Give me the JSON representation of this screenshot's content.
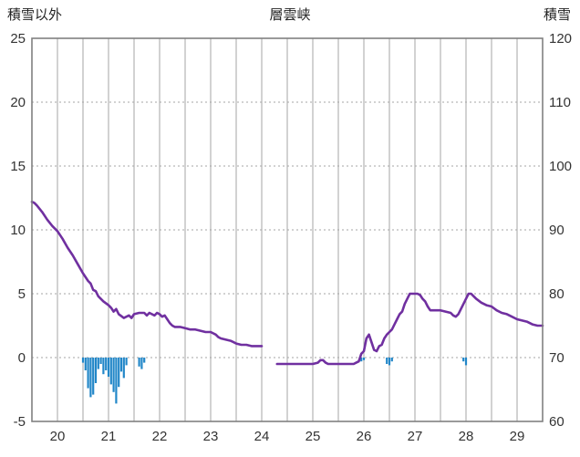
{
  "header": {
    "left_axis_title": "積雪以外",
    "title": "層雲峡",
    "right_axis_title": "積雪"
  },
  "chart_data": {
    "type": "line",
    "title": "層雲峡",
    "xlabel": "",
    "ylabel_left": "積雪以外",
    "ylabel_right": "積雪",
    "x_range": [
      19.5,
      29.5
    ],
    "x_ticks": [
      20,
      21,
      22,
      23,
      24,
      25,
      26,
      27,
      28,
      29
    ],
    "left_axis": {
      "range": [
        -5,
        25
      ],
      "ticks": [
        25,
        20,
        15,
        10,
        5,
        0,
        -5
      ]
    },
    "right_axis": {
      "range": [
        60,
        120
      ],
      "ticks": [
        120,
        110,
        100,
        90,
        80,
        70,
        60
      ]
    },
    "grid": {
      "vertical_step": 0.5,
      "horizontal_step": 5
    },
    "colors": {
      "line": "#7030a0",
      "bars": "#2287c8",
      "grid": "#a6a6a6",
      "frame": "#808080",
      "text": "#333333"
    },
    "series": [
      {
        "name": "snow-depth-segment-1",
        "points": [
          [
            19.5,
            12.2
          ],
          [
            19.55,
            12.1
          ],
          [
            19.6,
            11.9
          ],
          [
            19.7,
            11.4
          ],
          [
            19.8,
            10.8
          ],
          [
            19.9,
            10.3
          ],
          [
            20.0,
            9.9
          ],
          [
            20.1,
            9.3
          ],
          [
            20.2,
            8.6
          ],
          [
            20.3,
            8.0
          ],
          [
            20.4,
            7.3
          ],
          [
            20.5,
            6.6
          ],
          [
            20.6,
            6.0
          ],
          [
            20.65,
            5.8
          ],
          [
            20.7,
            5.3
          ],
          [
            20.75,
            5.2
          ],
          [
            20.8,
            4.8
          ],
          [
            20.9,
            4.4
          ],
          [
            21.0,
            4.1
          ],
          [
            21.05,
            3.9
          ],
          [
            21.1,
            3.6
          ],
          [
            21.15,
            3.8
          ],
          [
            21.2,
            3.4
          ],
          [
            21.3,
            3.1
          ],
          [
            21.4,
            3.3
          ],
          [
            21.45,
            3.1
          ],
          [
            21.5,
            3.4
          ],
          [
            21.6,
            3.5
          ],
          [
            21.7,
            3.5
          ],
          [
            21.75,
            3.3
          ],
          [
            21.8,
            3.5
          ],
          [
            21.9,
            3.3
          ],
          [
            21.95,
            3.5
          ],
          [
            22.0,
            3.4
          ],
          [
            22.05,
            3.2
          ],
          [
            22.1,
            3.3
          ],
          [
            22.15,
            3.0
          ],
          [
            22.2,
            2.7
          ],
          [
            22.25,
            2.5
          ],
          [
            22.3,
            2.4
          ],
          [
            22.4,
            2.4
          ],
          [
            22.5,
            2.3
          ],
          [
            22.6,
            2.2
          ],
          [
            22.7,
            2.2
          ],
          [
            22.8,
            2.1
          ],
          [
            22.9,
            2.0
          ],
          [
            23.0,
            2.0
          ],
          [
            23.1,
            1.8
          ],
          [
            23.15,
            1.6
          ],
          [
            23.2,
            1.5
          ],
          [
            23.3,
            1.4
          ],
          [
            23.4,
            1.3
          ],
          [
            23.5,
            1.1
          ],
          [
            23.6,
            1.0
          ],
          [
            23.7,
            1.0
          ],
          [
            23.8,
            0.9
          ],
          [
            23.9,
            0.9
          ],
          [
            24.0,
            0.9
          ]
        ]
      },
      {
        "name": "snow-depth-segment-2",
        "points": [
          [
            24.3,
            -0.5
          ],
          [
            24.5,
            -0.5
          ],
          [
            24.7,
            -0.5
          ],
          [
            24.9,
            -0.5
          ],
          [
            25.0,
            -0.5
          ],
          [
            25.1,
            -0.4
          ],
          [
            25.15,
            -0.2
          ],
          [
            25.2,
            -0.2
          ],
          [
            25.25,
            -0.4
          ],
          [
            25.3,
            -0.5
          ],
          [
            25.5,
            -0.5
          ],
          [
            25.7,
            -0.5
          ],
          [
            25.8,
            -0.5
          ],
          [
            25.85,
            -0.4
          ],
          [
            25.9,
            -0.3
          ],
          [
            25.95,
            0.3
          ],
          [
            26.0,
            0.5
          ],
          [
            26.05,
            1.5
          ],
          [
            26.1,
            1.8
          ],
          [
            26.15,
            1.2
          ],
          [
            26.2,
            0.6
          ],
          [
            26.25,
            0.5
          ],
          [
            26.3,
            0.9
          ],
          [
            26.35,
            1.0
          ],
          [
            26.4,
            1.5
          ],
          [
            26.45,
            1.8
          ],
          [
            26.5,
            2.0
          ],
          [
            26.55,
            2.2
          ],
          [
            26.6,
            2.6
          ],
          [
            26.65,
            3.0
          ],
          [
            26.7,
            3.4
          ],
          [
            26.75,
            3.6
          ],
          [
            26.8,
            4.2
          ],
          [
            26.85,
            4.6
          ],
          [
            26.9,
            5.0
          ],
          [
            27.0,
            5.0
          ],
          [
            27.05,
            5.0
          ],
          [
            27.1,
            4.9
          ],
          [
            27.15,
            4.6
          ],
          [
            27.2,
            4.4
          ],
          [
            27.25,
            4.0
          ],
          [
            27.3,
            3.7
          ],
          [
            27.4,
            3.7
          ],
          [
            27.5,
            3.7
          ],
          [
            27.6,
            3.6
          ],
          [
            27.7,
            3.5
          ],
          [
            27.75,
            3.3
          ],
          [
            27.8,
            3.2
          ],
          [
            27.85,
            3.4
          ],
          [
            27.9,
            3.8
          ],
          [
            27.95,
            4.2
          ],
          [
            28.0,
            4.6
          ],
          [
            28.05,
            5.0
          ],
          [
            28.1,
            5.0
          ],
          [
            28.15,
            4.8
          ],
          [
            28.2,
            4.6
          ],
          [
            28.3,
            4.3
          ],
          [
            28.4,
            4.1
          ],
          [
            28.5,
            4.0
          ],
          [
            28.6,
            3.7
          ],
          [
            28.7,
            3.5
          ],
          [
            28.8,
            3.4
          ],
          [
            28.9,
            3.2
          ],
          [
            29.0,
            3.0
          ],
          [
            29.1,
            2.9
          ],
          [
            29.2,
            2.8
          ],
          [
            29.3,
            2.6
          ],
          [
            29.4,
            2.5
          ],
          [
            29.5,
            2.5
          ]
        ]
      }
    ],
    "bars": {
      "name": "negative-bars",
      "points": [
        [
          20.5,
          -0.4
        ],
        [
          20.55,
          -1.0
        ],
        [
          20.6,
          -2.4
        ],
        [
          20.65,
          -3.1
        ],
        [
          20.7,
          -2.9
        ],
        [
          20.75,
          -2.0
        ],
        [
          20.8,
          -0.9
        ],
        [
          20.85,
          -0.5
        ],
        [
          20.9,
          -1.3
        ],
        [
          20.95,
          -1.0
        ],
        [
          21.0,
          -1.5
        ],
        [
          21.05,
          -2.1
        ],
        [
          21.1,
          -2.7
        ],
        [
          21.15,
          -3.6
        ],
        [
          21.2,
          -2.3
        ],
        [
          21.25,
          -1.1
        ],
        [
          21.3,
          -1.6
        ],
        [
          21.35,
          -0.6
        ],
        [
          21.6,
          -0.7
        ],
        [
          21.65,
          -0.9
        ],
        [
          21.7,
          -0.4
        ],
        [
          25.95,
          -0.3
        ],
        [
          26.0,
          -0.2
        ],
        [
          26.45,
          -0.5
        ],
        [
          26.5,
          -0.6
        ],
        [
          26.55,
          -0.3
        ],
        [
          27.95,
          -0.3
        ],
        [
          28.0,
          -0.6
        ]
      ]
    }
  }
}
